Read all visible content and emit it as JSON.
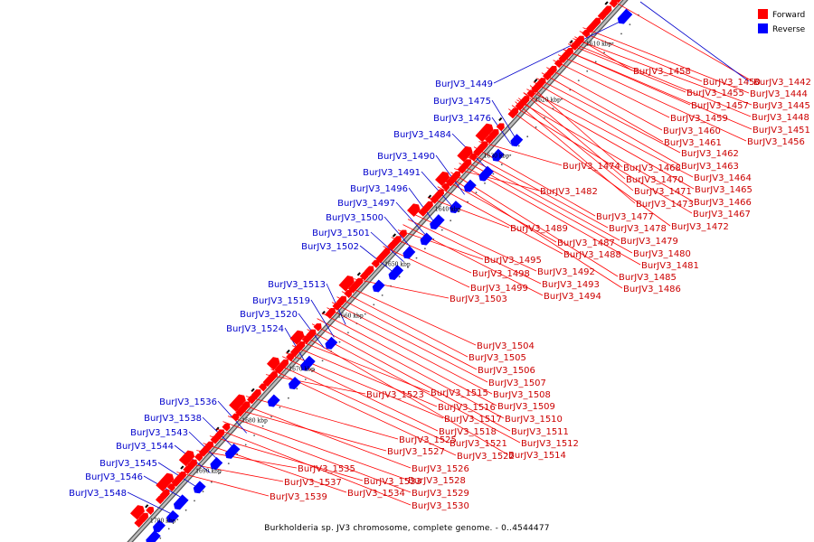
{
  "legend": [
    {
      "label": "Forward",
      "color": "#ff0000"
    },
    {
      "label": "Reverse",
      "color": "#0000ff"
    }
  ],
  "caption": "Burkholderia sp. JV3 chromosome, complete genome. - 0..4544477",
  "ticks": [
    "1610 kbp",
    "1620 kbp",
    "1630 kbp",
    "1640 kbp",
    "1650 kbp",
    "1660 kbp",
    "1670 kbp",
    "1680 kbp",
    "1690 kbp",
    "1700 kbp"
  ],
  "forward_labels": [
    "BurJV3_1442",
    "BurJV3_1444",
    "BurJV3_1445",
    "BurJV3_1448",
    "BurJV3_1450",
    "BurJV3_1451",
    "BurJV3_1455",
    "BurJV3_1456",
    "BurJV3_1457",
    "BurJV3_1458",
    "BurJV3_1459",
    "BurJV3_1460",
    "BurJV3_1461",
    "BurJV3_1462",
    "BurJV3_1463",
    "BurJV3_1464",
    "BurJV3_1465",
    "BurJV3_1466",
    "BurJV3_1467",
    "BurJV3_1468",
    "BurJV3_1470",
    "BurJV3_1471",
    "BurJV3_1472",
    "BurJV3_1473",
    "BurJV3_1474",
    "BurJV3_1477",
    "BurJV3_1478",
    "BurJV3_1479",
    "BurJV3_1480",
    "BurJV3_1481",
    "BurJV3_1482",
    "BurJV3_1485",
    "BurJV3_1486",
    "BurJV3_1487",
    "BurJV3_1488",
    "BurJV3_1489",
    "BurJV3_1492",
    "BurJV3_1493",
    "BurJV3_1494",
    "BurJV3_1495",
    "BurJV3_1498",
    "BurJV3_1499",
    "BurJV3_1503",
    "BurJV3_1504",
    "BurJV3_1505",
    "BurJV3_1506",
    "BurJV3_1507",
    "BurJV3_1508",
    "BurJV3_1509",
    "BurJV3_1510",
    "BurJV3_1511",
    "BurJV3_1512",
    "BurJV3_1514",
    "BurJV3_1515",
    "BurJV3_1516",
    "BurJV3_1517",
    "BurJV3_1518",
    "BurJV3_1521",
    "BurJV3_1522",
    "BurJV3_1523",
    "BurJV3_1525",
    "BurJV3_1526",
    "BurJV3_1527",
    "BurJV3_1528",
    "BurJV3_1529",
    "BurJV3_1530",
    "BurJV3_1533",
    "BurJV3_1534",
    "BurJV3_1535",
    "BurJV3_1537",
    "BurJV3_1539"
  ],
  "reverse_labels": [
    "BurJV3_1449",
    "BurJV3_1475",
    "BurJV3_1476",
    "BurJV3_1484",
    "BurJV3_1490",
    "BurJV3_1491",
    "BurJV3_1496",
    "BurJV3_1497",
    "BurJV3_1500",
    "BurJV3_1501",
    "BurJV3_1502",
    "BurJV3_1513",
    "BurJV3_1519",
    "BurJV3_1520",
    "BurJV3_1524",
    "BurJV3_1536",
    "BurJV3_1538",
    "BurJV3_1543",
    "BurJV3_1544",
    "BurJV3_1545",
    "BurJV3_1546",
    "BurJV3_1548"
  ]
}
